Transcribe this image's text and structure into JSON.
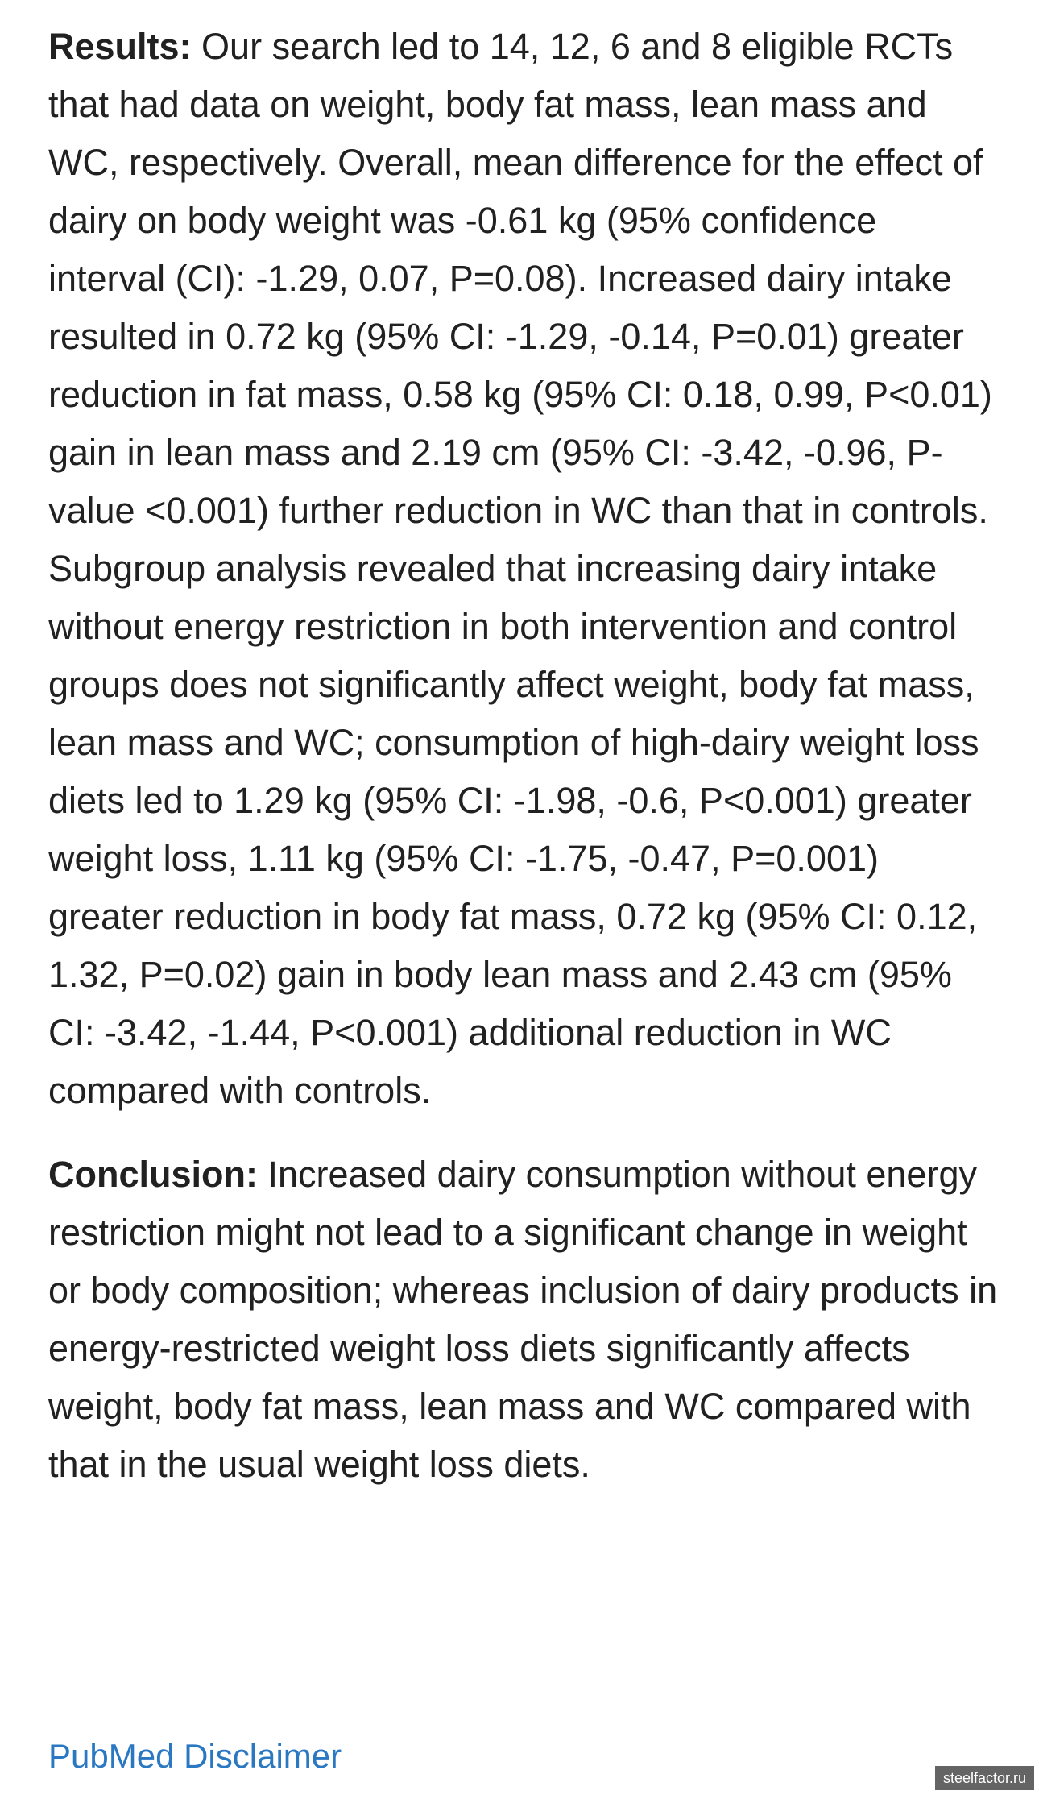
{
  "abstract": {
    "results": {
      "label": "Results:",
      "text": " Our search led to 14, 12, 6 and 8 eligible RCTs that had data on weight, body fat mass, lean mass and WC, respectively. Overall, mean difference for the effect of dairy on body weight was -0.61 kg (95% confidence interval (CI): -1.29, 0.07, P=0.08). Increased dairy intake resulted in 0.72 kg (95% CI: -1.29, -0.14, P=0.01) greater reduction in fat mass, 0.58 kg (95% CI: 0.18, 0.99, P<0.01) gain in lean mass and 2.19 cm (95% CI: -3.42, -0.96, P-value <0.001) further reduction in WC than that in controls. Subgroup analysis revealed that increasing dairy intake without energy restriction in both intervention and control groups does not significantly affect weight, body fat mass, lean mass and WC; consumption of high-dairy weight loss diets led to 1.29 kg (95% CI: -1.98, -0.6, P<0.001) greater weight loss, 1.11 kg (95% CI: -1.75, -0.47, P=0.001) greater reduction in body fat mass, 0.72 kg (95% CI: 0.12, 1.32, P=0.02) gain in body lean mass and 2.43 cm (95% CI: -3.42, -1.44, P<0.001) additional reduction in WC compared with controls."
    },
    "conclusion": {
      "label": "Conclusion:",
      "text": " Increased dairy consumption without energy restriction might not lead to a significant change in weight or body composition; whereas inclusion of dairy products in energy-restricted weight loss diets significantly affects weight, body fat mass, lean mass and WC compared with that in the usual weight loss diets."
    }
  },
  "links": {
    "disclaimer": "PubMed Disclaimer"
  },
  "watermark": "steelfactor.ru",
  "colors": {
    "text": "#212121",
    "link": "#2a77c2",
    "background": "#ffffff"
  }
}
